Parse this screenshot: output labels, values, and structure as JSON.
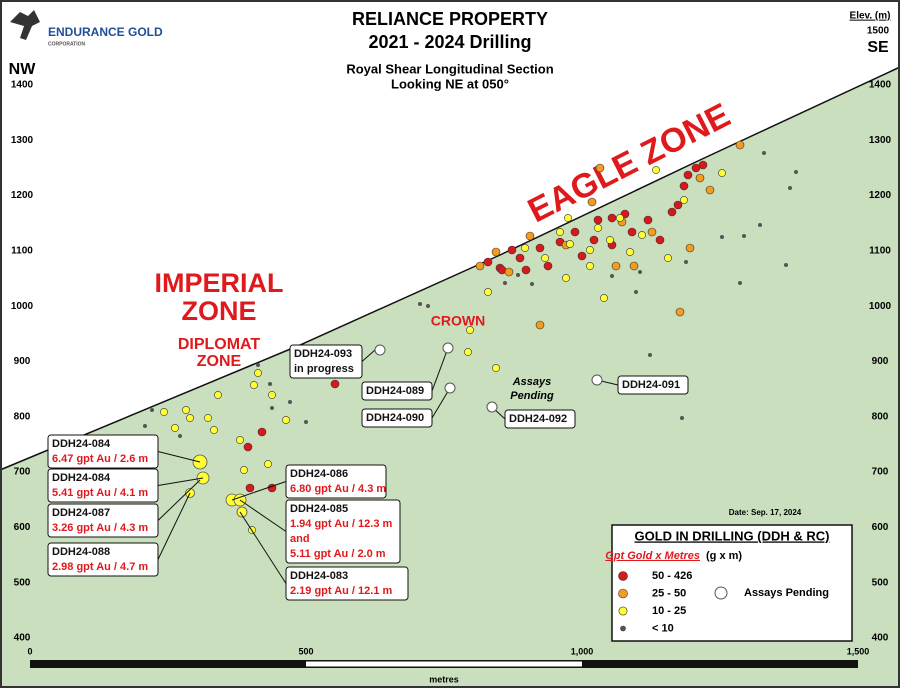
{
  "header": {
    "logo": "ENDURANCE GOLD",
    "logo_sub": "CORPORATION",
    "title": [
      "RELIANCE PROPERTY",
      "2021 - 2024 Drilling"
    ],
    "subtitle": [
      "Royal Shear Longitudinal Section",
      "Looking NE at 050°"
    ],
    "elev_label": "Elev. (m)",
    "elev_top": "1500",
    "left_dir": "NW",
    "right_dir": "SE"
  },
  "elevation_ticks": [
    "1400",
    "1300",
    "1200",
    "1100",
    "1000",
    "900",
    "800",
    "700",
    "600",
    "500",
    "400"
  ],
  "zones": {
    "eagle": "EAGLE  ZONE",
    "imperial": [
      "IMPERIAL",
      "ZONE"
    ],
    "diplomat": [
      "DIPLOMAT",
      "ZONE"
    ],
    "crown": "CROWN",
    "pending": [
      "Assays",
      "Pending"
    ]
  },
  "callouts": [
    {
      "lines": [
        "DDH24-084",
        "6.47 gpt Au / 2.6 m"
      ]
    },
    {
      "lines": [
        "DDH24-084",
        "5.41 gpt Au / 4.1 m"
      ]
    },
    {
      "lines": [
        "DDH24-087",
        "3.26 gpt Au / 4.3 m"
      ]
    },
    {
      "lines": [
        "DDH24-088",
        "2.98 gpt Au / 4.7 m"
      ]
    },
    {
      "lines": [
        "DDH24-086",
        "6.80 gpt Au / 4.3 m"
      ]
    },
    {
      "lines": [
        "DDH24-085",
        "1.94 gpt Au / 12.3 m",
        "and",
        "5.11 gpt Au / 2.0 m"
      ]
    },
    {
      "lines": [
        "DDH24-083",
        "2.19 gpt Au / 12.1 m"
      ]
    },
    {
      "lines": [
        "DDH24-093",
        "in progress"
      ]
    },
    {
      "lines": [
        "DDH24-089"
      ]
    },
    {
      "lines": [
        "DDH24-090"
      ]
    },
    {
      "lines": [
        "DDH24-092"
      ]
    },
    {
      "lines": [
        "DDH24-091"
      ]
    }
  ],
  "date": "Date:  Sep. 17, 2024",
  "legend": {
    "title": "GOLD IN DRILLING (DDH & RC)",
    "subtitle": "Gpt Gold x Metres",
    "unit": "(g x m)",
    "items": [
      "50 - 426",
      "25 - 50",
      "10 - 25",
      "< 10"
    ],
    "pending": "Assays Pending"
  },
  "scale": {
    "labels": [
      "0",
      "500",
      "1,000",
      "1,500"
    ],
    "unit": "metres"
  }
}
